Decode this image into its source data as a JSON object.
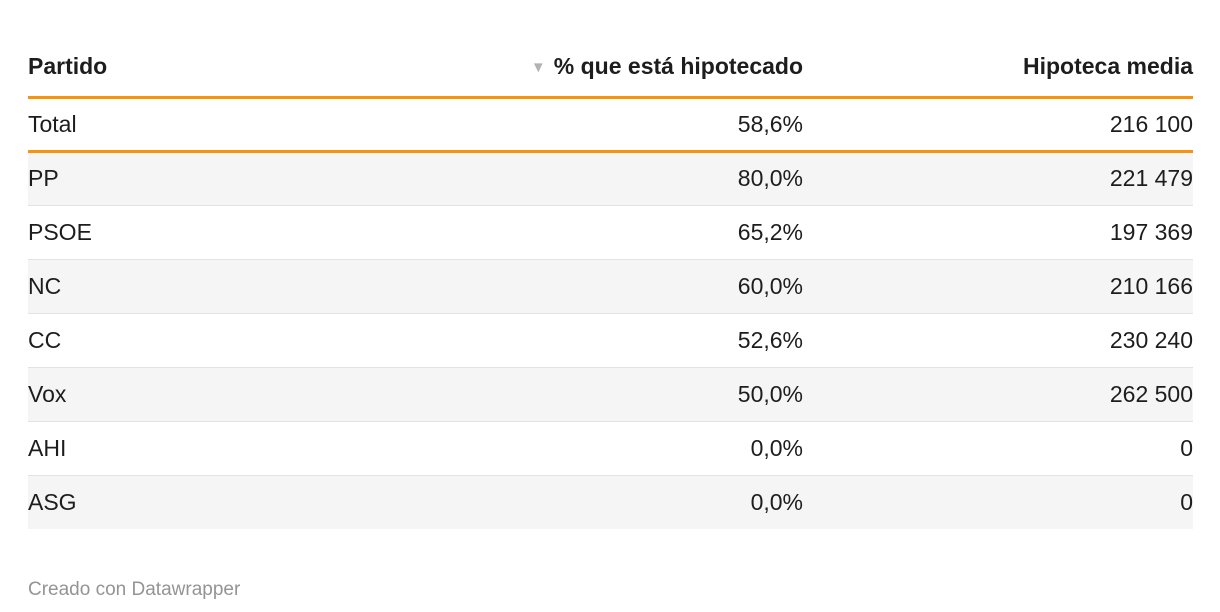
{
  "table": {
    "columns": [
      {
        "label": "Partido",
        "align": "left",
        "sorted": false
      },
      {
        "label": "% que está hipotecado",
        "align": "right",
        "sorted": true,
        "sort_direction": "desc"
      },
      {
        "label": "Hipoteca media",
        "align": "right",
        "sorted": false
      }
    ],
    "rows": [
      {
        "cells": [
          "Total",
          "58,6%",
          "216 100"
        ],
        "is_total": true
      },
      {
        "cells": [
          "PP",
          "80,0%",
          "221 479"
        ]
      },
      {
        "cells": [
          "PSOE",
          "65,2%",
          "197 369"
        ]
      },
      {
        "cells": [
          "NC",
          "60,0%",
          "210 166"
        ]
      },
      {
        "cells": [
          "CC",
          "52,6%",
          "230 240"
        ]
      },
      {
        "cells": [
          "Vox",
          "50,0%",
          "262 500"
        ]
      },
      {
        "cells": [
          "AHI",
          "0,0%",
          "0"
        ]
      },
      {
        "cells": [
          "ASG",
          "0,0%",
          "0"
        ]
      }
    ]
  },
  "icons": {
    "sort_desc": "▼"
  },
  "colors": {
    "accent_orange": "#F7940B",
    "stripe": "#F5F5F5",
    "row_border": "#E3E3E3",
    "text": "#1D1D1D",
    "footer_text": "#949494",
    "sort_arrow": "#B3B3B3"
  },
  "footer": {
    "credit": "Creado con Datawrapper"
  },
  "chart_data": {
    "type": "table",
    "title": "",
    "columns": [
      "Partido",
      "% que está hipotecado",
      "Hipoteca media"
    ],
    "rows": [
      [
        "Total",
        58.6,
        216100
      ],
      [
        "PP",
        80.0,
        221479
      ],
      [
        "PSOE",
        65.2,
        197369
      ],
      [
        "NC",
        60.0,
        210166
      ],
      [
        "CC",
        52.6,
        230240
      ],
      [
        "Vox",
        50.0,
        262500
      ],
      [
        "AHI",
        0.0,
        0
      ],
      [
        "ASG",
        0.0,
        0
      ]
    ],
    "number_format": {
      "percent_decimal_separator": ",",
      "thousands_separator": " "
    },
    "sort": {
      "column": "% que está hipotecado",
      "direction": "desc"
    },
    "total_row_included": true
  }
}
